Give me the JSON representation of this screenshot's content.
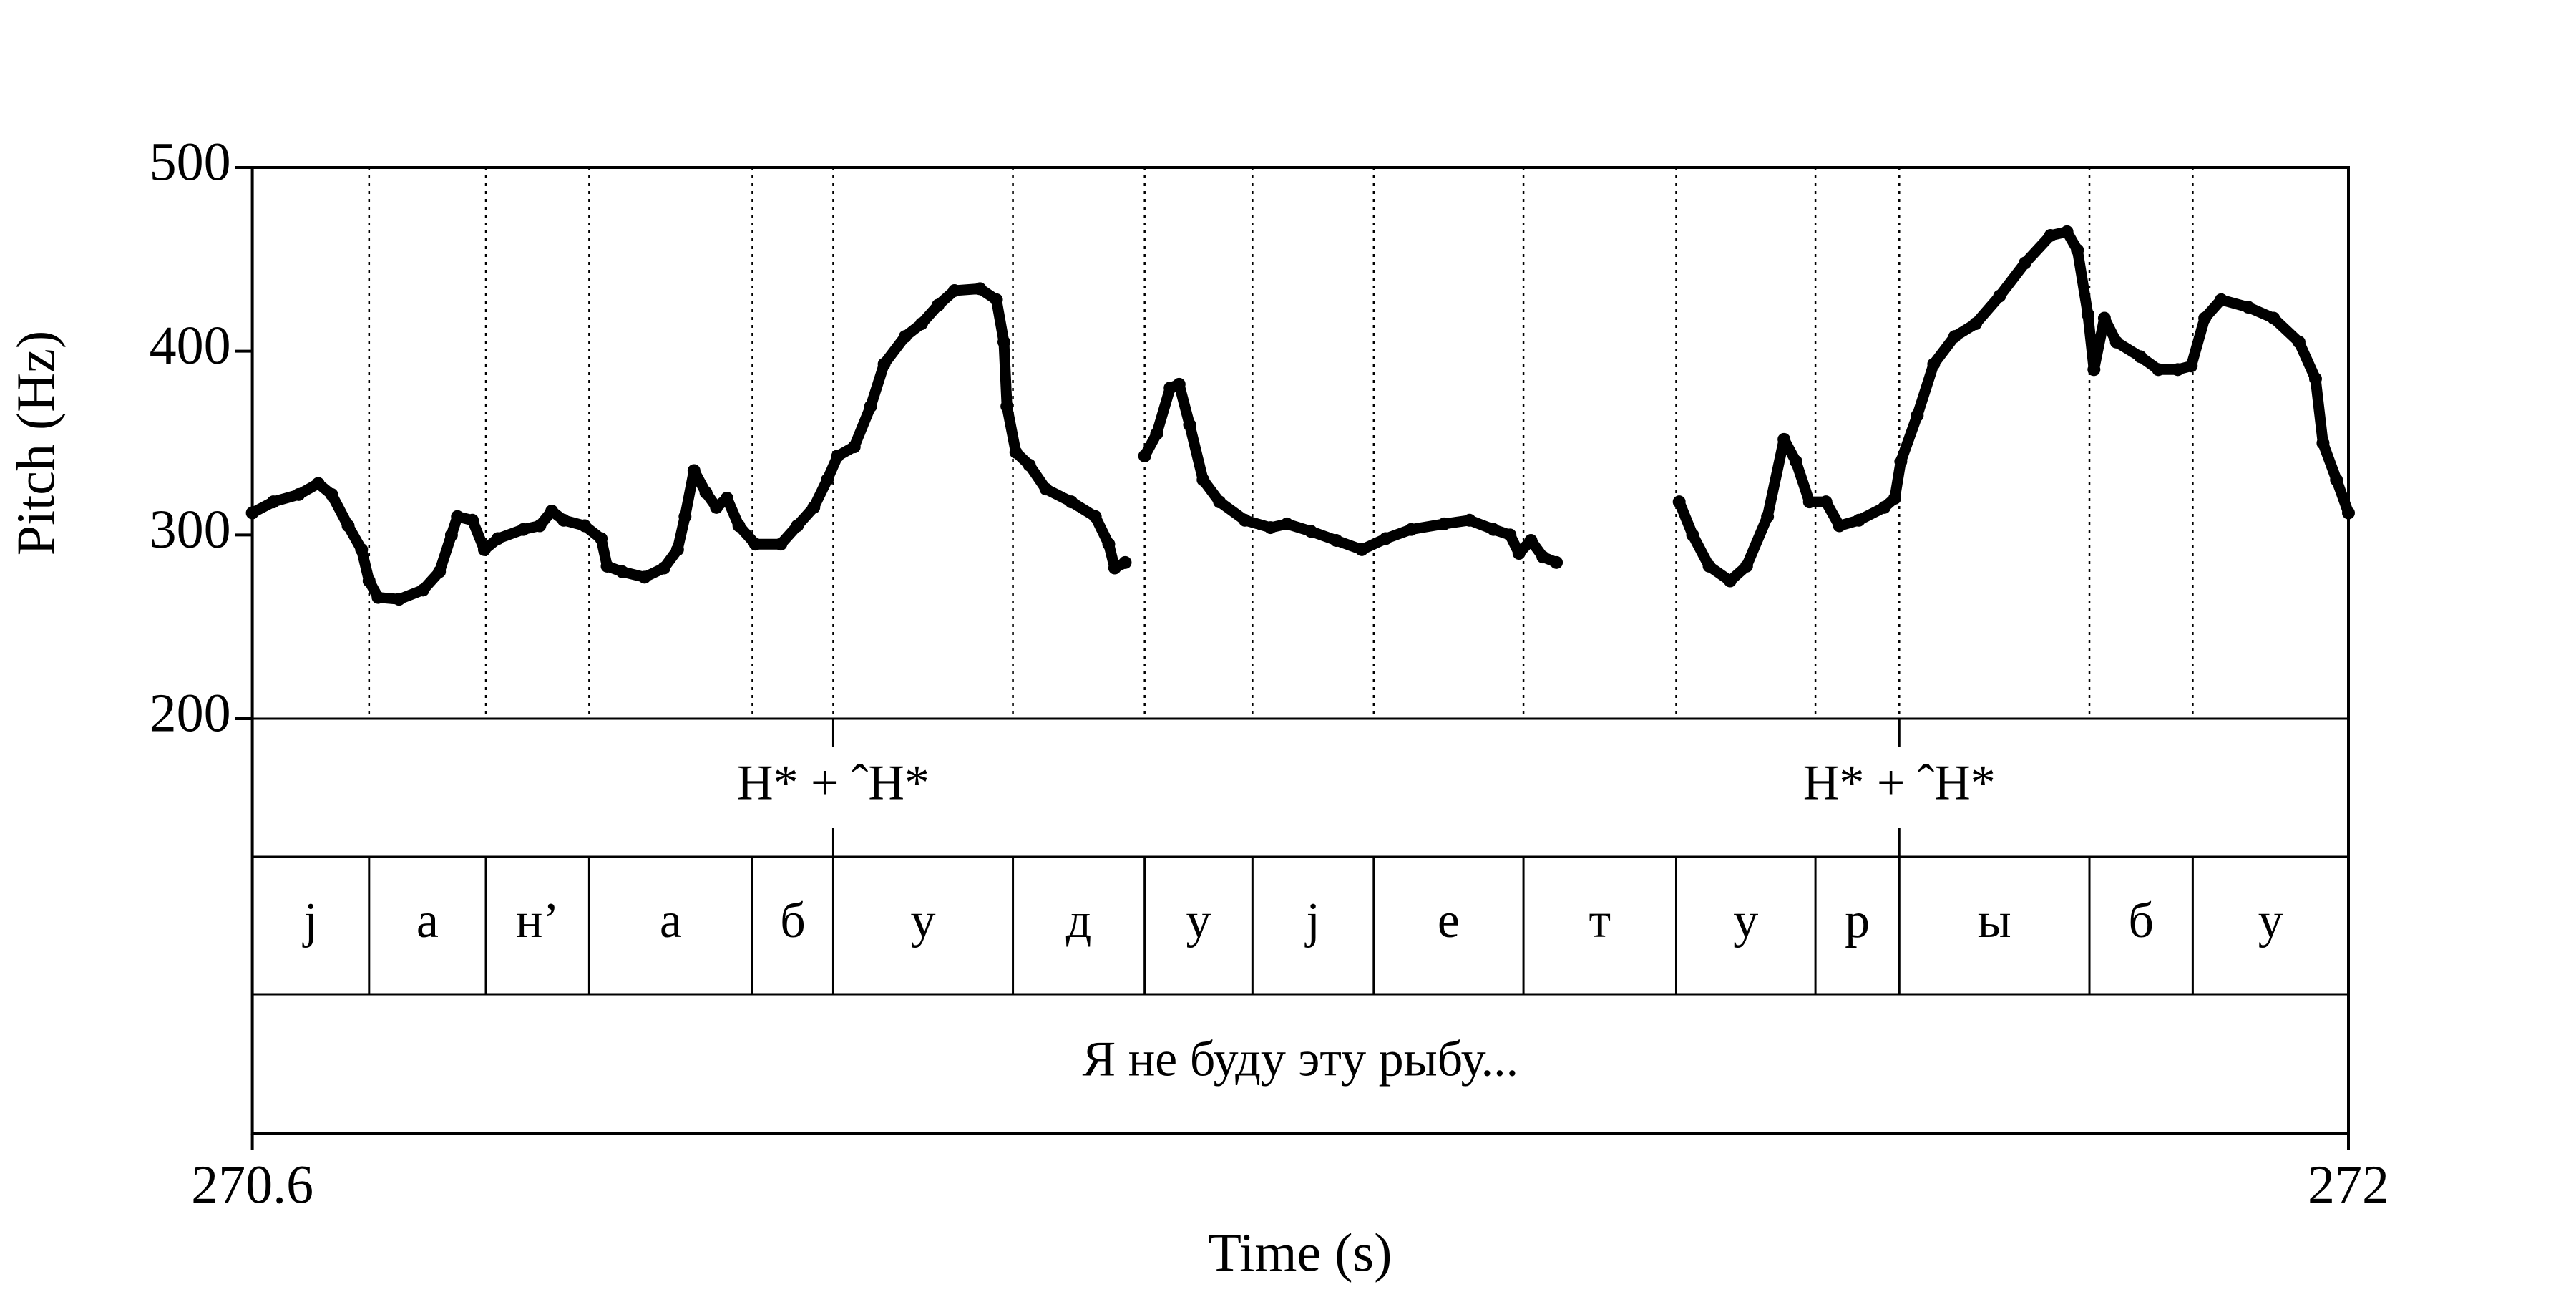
{
  "chart_data": {
    "type": "scatter",
    "xlabel": "Time (s)",
    "ylabel": "Pitch (Hz)",
    "xlim": [
      270.6,
      272
    ],
    "xticks": [
      270.6,
      272
    ],
    "ylim": [
      200,
      500
    ],
    "yticks": [
      200,
      300,
      400,
      500
    ],
    "x": [
      270.6,
      270.614,
      270.631,
      270.644,
      270.653,
      270.664,
      270.673,
      270.678,
      270.684,
      270.698,
      270.714,
      270.725,
      270.733,
      270.737,
      270.747,
      270.755,
      270.764,
      270.781,
      270.792,
      270.8,
      270.808,
      270.822,
      270.833,
      270.837,
      270.847,
      270.862,
      270.875,
      270.884,
      270.889,
      270.895,
      270.903,
      270.91,
      270.917,
      270.925,
      270.936,
      270.953,
      270.964,
      270.975,
      270.984,
      270.991,
      271.002,
      271.013,
      271.022,
      271.036,
      271.047,
      271.058,
      271.069,
      271.086,
      271.097,
      271.102,
      271.104,
      271.11,
      271.119,
      271.13,
      271.147,
      271.163,
      271.172,
      271.176,
      271.183,
      null,
      271.196,
      271.204,
      271.213,
      271.219,
      271.226,
      271.235,
      271.246,
      271.263,
      271.28,
      271.291,
      271.307,
      271.324,
      271.341,
      271.357,
      271.374,
      271.396,
      271.413,
      271.429,
      271.44,
      271.446,
      271.454,
      271.462,
      271.471,
      null,
      271.553,
      271.562,
      271.573,
      271.587,
      271.598,
      271.612,
      271.623,
      271.631,
      271.64,
      271.651,
      271.66,
      271.673,
      271.69,
      271.697,
      271.701,
      271.712,
      271.723,
      271.737,
      271.751,
      271.767,
      271.784,
      271.801,
      271.812,
      271.819,
      271.826,
      271.83,
      271.837,
      271.845,
      271.861,
      271.873,
      271.886,
      271.895,
      271.904,
      271.915,
      271.933,
      271.95,
      271.967,
      271.978,
      271.983,
      271.992,
      272.0
    ],
    "series": [
      {
        "color": "#000000",
        "values": [
          312,
          318,
          322,
          328,
          322,
          305,
          292,
          275,
          266,
          265,
          270,
          280,
          300,
          310,
          308,
          292,
          298,
          303,
          305,
          313,
          308,
          305,
          298,
          283,
          280,
          277,
          282,
          292,
          310,
          335,
          323,
          315,
          320,
          305,
          295,
          295,
          305,
          315,
          330,
          343,
          348,
          370,
          393,
          408,
          415,
          425,
          433,
          434,
          428,
          405,
          370,
          345,
          338,
          325,
          318,
          310,
          295,
          282,
          285,
          null,
          343,
          355,
          380,
          382,
          360,
          330,
          318,
          308,
          304,
          306,
          302,
          297,
          292,
          298,
          303,
          306,
          308,
          303,
          300,
          290,
          297,
          288,
          285,
          null,
          318,
          300,
          283,
          275,
          283,
          310,
          352,
          340,
          318,
          318,
          305,
          308,
          315,
          320,
          340,
          365,
          393,
          408,
          415,
          430,
          448,
          463,
          465,
          455,
          420,
          390,
          418,
          405,
          397,
          390,
          390,
          392,
          418,
          428,
          424,
          418,
          405,
          385,
          350,
          330,
          312
        ]
      }
    ],
    "tiers": [
      {
        "type": "point",
        "points": [
          {
            "time": 270.988,
            "label": "H* + ˆH*"
          },
          {
            "time": 271.7,
            "label": "H* + ˆH*"
          }
        ]
      },
      {
        "type": "interval",
        "boundaries": [
          270.678,
          270.756,
          270.825,
          270.934,
          270.988,
          271.108,
          271.196,
          271.268,
          271.349,
          271.449,
          271.551,
          271.644,
          271.7,
          271.827,
          271.896
        ],
        "labels": [
          "j",
          "а",
          "н’",
          "а",
          "б",
          "у",
          "д",
          "у",
          "j",
          "е",
          "т",
          "у",
          "р",
          "ы",
          "б",
          "у"
        ]
      },
      {
        "type": "interval",
        "boundaries": [],
        "labels": [
          "Я не буду эту рыбу..."
        ]
      }
    ]
  }
}
